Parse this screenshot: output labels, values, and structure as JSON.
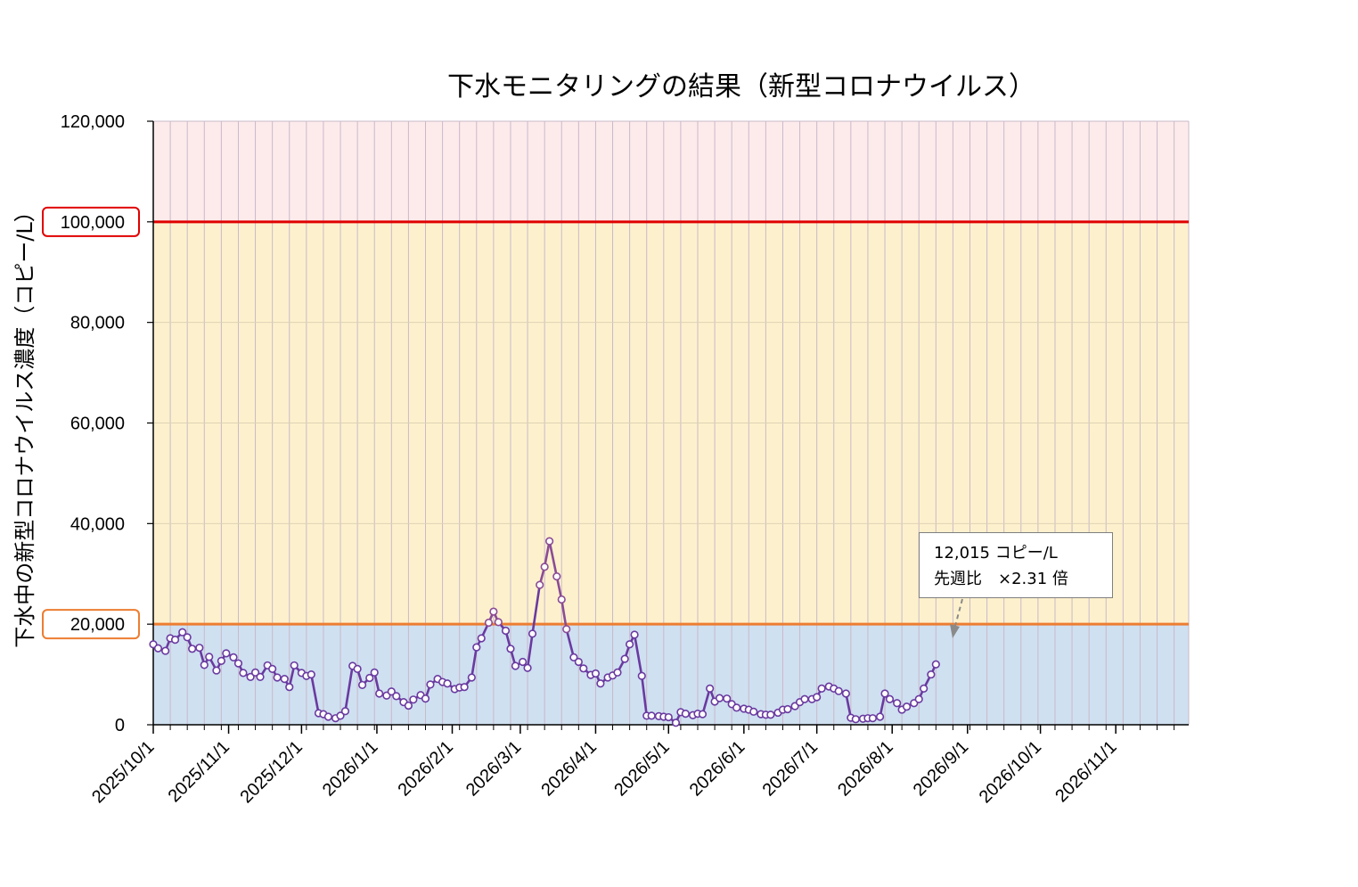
{
  "chart_data": {
    "type": "line",
    "title": "下水モニタリングの結果（新型コロナウイルス）",
    "ylabel": "下水中の新型コロナウイルス濃度（コピー/L）",
    "xlabel": "",
    "ylim": [
      0,
      120000
    ],
    "x_range": [
      "2025-10-01",
      "2026-12-01"
    ],
    "yticks": [
      "0",
      "20,000",
      "40,000",
      "60,000",
      "80,000",
      "100,000",
      "120,000"
    ],
    "xticks": [
      {
        "date": "2025-10-01",
        "label": "2025/10/1"
      },
      {
        "date": "2025-11-01",
        "label": "2025/11/1"
      },
      {
        "date": "2025-12-01",
        "label": "2025/12/1"
      },
      {
        "date": "2026-01-01",
        "label": "2026/1/1"
      },
      {
        "date": "2026-02-01",
        "label": "2026/2/1"
      },
      {
        "date": "2026-03-01",
        "label": "2026/3/1"
      },
      {
        "date": "2026-04-01",
        "label": "2026/4/1"
      },
      {
        "date": "2026-05-01",
        "label": "2026/5/1"
      },
      {
        "date": "2026-06-01",
        "label": "2026/6/1"
      },
      {
        "date": "2026-07-01",
        "label": "2026/7/1"
      },
      {
        "date": "2026-08-01",
        "label": "2026/8/1"
      },
      {
        "date": "2026-09-01",
        "label": "2026/9/1"
      },
      {
        "date": "2026-10-01",
        "label": "2026/10/1"
      },
      {
        "date": "2026-11-01",
        "label": "2026/11/1"
      }
    ],
    "grid": "vertical weekly lines",
    "bands": [
      {
        "from": 0,
        "to": 20000,
        "color": "#cfe0f1"
      },
      {
        "from": 20000,
        "to": 100000,
        "color": "#fdf1cd"
      },
      {
        "from": 100000,
        "to": 120000,
        "color": "#fdebec"
      }
    ],
    "threshold_lines": [
      {
        "value": 20000,
        "label": "20,000",
        "color": "#ed7d31"
      },
      {
        "value": 100000,
        "label": "100,000",
        "color": "#e00000"
      }
    ],
    "series": [
      {
        "name": "",
        "color": "#6a3aa0",
        "highlight_color": "#8b4c96",
        "x": [
          "2025-10-01",
          "2025-10-03",
          "2025-10-06",
          "2025-10-08",
          "2025-10-10",
          "2025-10-13",
          "2025-10-15",
          "2025-10-17",
          "2025-10-20",
          "2025-10-22",
          "2025-10-24",
          "2025-10-27",
          "2025-10-29",
          "2025-10-31",
          "2025-11-03",
          "2025-11-05",
          "2025-11-07",
          "2025-11-10",
          "2025-11-12",
          "2025-11-14",
          "2025-11-17",
          "2025-11-19",
          "2025-11-21",
          "2025-11-24",
          "2025-11-26",
          "2025-11-28",
          "2025-12-01",
          "2025-12-03",
          "2025-12-05",
          "2025-12-08",
          "2025-12-10",
          "2025-12-12",
          "2025-12-15",
          "2025-12-17",
          "2025-12-19",
          "2025-12-22",
          "2025-12-24",
          "2025-12-26",
          "2025-12-29",
          "2025-12-31",
          "2026-01-02",
          "2026-01-05",
          "2026-01-07",
          "2026-01-09",
          "2026-01-12",
          "2026-01-14",
          "2026-01-16",
          "2026-01-19",
          "2026-01-21",
          "2026-01-23",
          "2026-01-26",
          "2026-01-28",
          "2026-01-30",
          "2026-02-02",
          "2026-02-04",
          "2026-02-06",
          "2026-02-09",
          "2026-02-11",
          "2026-02-13",
          "2026-02-16",
          "2026-02-18",
          "2026-02-20",
          "2026-02-23",
          "2026-02-25",
          "2026-02-27",
          "2026-03-02",
          "2026-03-04",
          "2026-03-06",
          "2026-03-09",
          "2026-03-11",
          "2026-03-13",
          "2026-03-16",
          "2026-03-18",
          "2026-03-20",
          "2026-03-23",
          "2026-03-25",
          "2026-03-27",
          "2026-03-30",
          "2026-04-01",
          "2026-04-03",
          "2026-04-06",
          "2026-04-08",
          "2026-04-10",
          "2026-04-13",
          "2026-04-15",
          "2026-04-17",
          "2026-04-20",
          "2026-04-22",
          "2026-04-24",
          "2026-04-27",
          "2026-04-29",
          "2026-05-01",
          "2026-05-04",
          "2026-05-06",
          "2026-05-08",
          "2026-05-11",
          "2026-05-13",
          "2026-05-15",
          "2026-05-18",
          "2026-05-20",
          "2026-05-22",
          "2026-05-25",
          "2026-05-27",
          "2026-05-29",
          "2026-06-01",
          "2026-06-03",
          "2026-06-05",
          "2026-06-08",
          "2026-06-10",
          "2026-06-12",
          "2026-06-15",
          "2026-06-17",
          "2026-06-19",
          "2026-06-22",
          "2026-06-24",
          "2026-06-26",
          "2026-06-29",
          "2026-07-01",
          "2026-07-03",
          "2026-07-06",
          "2026-07-08",
          "2026-07-10",
          "2026-07-13",
          "2026-07-15",
          "2026-07-17",
          "2026-07-20",
          "2026-07-22",
          "2026-07-24",
          "2026-07-27",
          "2026-07-29",
          "2026-07-31",
          "2026-08-03",
          "2026-08-05",
          "2026-08-07",
          "2026-08-10",
          "2026-08-12",
          "2026-08-14",
          "2026-08-17",
          "2026-08-19"
        ],
        "values": [
          16000,
          15200,
          14700,
          17200,
          16900,
          18400,
          17400,
          15100,
          15300,
          11900,
          13500,
          10800,
          12700,
          14200,
          13400,
          12200,
          10300,
          9500,
          10400,
          9500,
          11800,
          11100,
          9400,
          9100,
          7500,
          11800,
          10300,
          9700,
          10000,
          2300,
          2100,
          1600,
          1300,
          1800,
          2700,
          11700,
          11100,
          7900,
          9300,
          10400,
          6200,
          5800,
          6600,
          5700,
          4500,
          3800,
          5000,
          5900,
          5200,
          8000,
          9100,
          8500,
          8200,
          7100,
          7400,
          7500,
          9400,
          15400,
          17200,
          20300,
          22500,
          20400,
          18700,
          15100,
          11700,
          12500,
          11300,
          18100,
          27800,
          31400,
          36500,
          29500,
          24900,
          19000,
          13400,
          12500,
          11200,
          9900,
          10200,
          8200,
          9400,
          9800,
          10400,
          13100,
          16000,
          17900,
          9700,
          1800,
          1800,
          1700,
          1600,
          1500,
          400,
          2500,
          2200,
          1900,
          2200,
          2100,
          7200,
          4600,
          5300,
          5200,
          4100,
          3400,
          3200,
          3000,
          2600,
          2100,
          2000,
          2000,
          2400,
          3000,
          3100,
          3700,
          4500,
          5100,
          5100,
          5500,
          7200,
          7600,
          7200,
          6700,
          6200,
          1400,
          1100,
          1200,
          1300,
          1300,
          1600,
          6200,
          5100,
          4300,
          3000,
          3600,
          4300,
          5100,
          7200,
          10000,
          12015
        ]
      }
    ],
    "annotation": {
      "line1": "12,015 コピー/L",
      "line2": "先週比　×2.31 倍",
      "arrow_color": "#8a8a8a"
    }
  }
}
